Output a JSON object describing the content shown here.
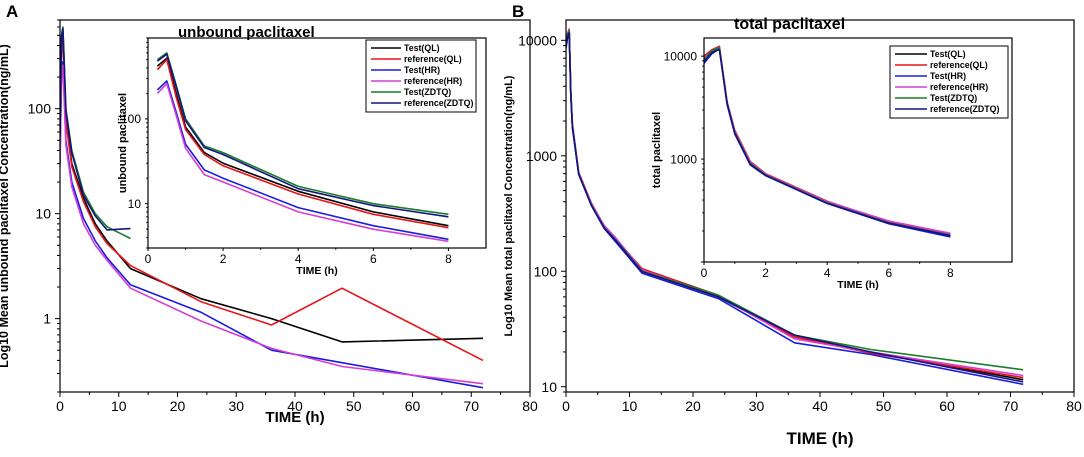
{
  "figure": {
    "panel_a_label": "A",
    "panel_b_label": "B"
  },
  "chart_data": [
    {
      "id": "A-main",
      "type": "line",
      "yscale": "log",
      "title": "",
      "xlabel": "TIME (h)",
      "ylabel": "Log10 Mean unbound paclitaxel Concentration(ng/mL)",
      "xlim": [
        0,
        80
      ],
      "ylim": [
        0.2,
        700
      ],
      "xticks": [
        0,
        10,
        20,
        30,
        40,
        50,
        60,
        70,
        80
      ],
      "yticks": [
        1,
        10,
        100
      ],
      "yticklabels": [
        "1",
        "10",
        "100"
      ],
      "series": [
        {
          "name": "Test(QL)",
          "color": "#000000",
          "x": [
            0,
            0.25,
            0.5,
            0.75,
            1,
            2,
            4,
            6,
            8,
            12,
            24,
            36,
            48,
            72
          ],
          "y": [
            50,
            420,
            520,
            200,
            80,
            30,
            14,
            8,
            5.5,
            3.0,
            1.55,
            1.0,
            0.6,
            0.65
          ]
        },
        {
          "name": "reference(QL)",
          "color": "#e8141a",
          "x": [
            0,
            0.25,
            0.5,
            0.75,
            1,
            2,
            4,
            6,
            8,
            12,
            24,
            36,
            48,
            72
          ],
          "y": [
            40,
            380,
            500,
            180,
            75,
            28,
            13,
            7.5,
            5.2,
            3.2,
            1.45,
            0.87,
            1.95,
            0.4
          ]
        },
        {
          "name": "Test(HR)",
          "color": "#1c1ce0",
          "x": [
            0,
            0.25,
            0.5,
            0.75,
            1,
            2,
            4,
            6,
            8,
            12,
            24,
            36,
            48,
            72
          ],
          "y": [
            30,
            220,
            280,
            120,
            50,
            20,
            9,
            5.5,
            3.8,
            2.1,
            1.15,
            0.5,
            0.38,
            0.22
          ]
        },
        {
          "name": "reference(HR)",
          "color": "#d23ed6",
          "x": [
            0,
            0.25,
            0.5,
            0.75,
            1,
            2,
            4,
            6,
            8,
            12,
            24,
            36,
            48,
            72
          ],
          "y": [
            28,
            200,
            260,
            110,
            45,
            18,
            8,
            5,
            3.6,
            1.95,
            0.95,
            0.52,
            0.35,
            0.24
          ]
        },
        {
          "name": "Test(ZDTQ)",
          "color": "#1a7d2a",
          "x": [
            0,
            0.25,
            0.5,
            0.75,
            1,
            2,
            4,
            6,
            8,
            12
          ],
          "y": [
            60,
            500,
            600,
            250,
            100,
            40,
            16,
            10,
            7.5,
            5.8
          ]
        },
        {
          "name": "reference(ZDTQ)",
          "color": "#141480",
          "x": [
            0,
            0.25,
            0.5,
            0.75,
            1,
            2,
            4,
            6,
            8,
            12
          ],
          "y": [
            55,
            480,
            580,
            240,
            95,
            38,
            15,
            9.5,
            7,
            7.2
          ]
        }
      ]
    },
    {
      "id": "A-inset",
      "type": "line",
      "yscale": "log",
      "title": "unbound paclitaxel",
      "xlabel": "TIME (h)",
      "ylabel": "unbound paclitaxel",
      "xlim": [
        0,
        9
      ],
      "ylim": [
        3,
        900
      ],
      "xticks": [
        0,
        2,
        4,
        6,
        8
      ],
      "yticks": [
        10,
        100
      ],
      "yticklabels": [
        "10",
        "100"
      ],
      "legend": "top-right",
      "series": [
        {
          "name": "Test(QL)",
          "color": "#000000",
          "x": [
            0.25,
            0.5,
            0.75,
            1,
            1.5,
            2,
            4,
            6,
            8
          ],
          "y": [
            420,
            520,
            200,
            80,
            40,
            30,
            14,
            8,
            5.5
          ]
        },
        {
          "name": "reference(QL)",
          "color": "#e8141a",
          "x": [
            0.25,
            0.5,
            0.75,
            1,
            1.5,
            2,
            4,
            6,
            8
          ],
          "y": [
            380,
            500,
            180,
            75,
            38,
            28,
            13,
            7.5,
            5.2
          ]
        },
        {
          "name": "Test(HR)",
          "color": "#1c1ce0",
          "x": [
            0.25,
            0.5,
            0.75,
            1,
            1.5,
            2,
            4,
            6,
            8
          ],
          "y": [
            220,
            280,
            120,
            50,
            25,
            20,
            9,
            5.5,
            3.8
          ]
        },
        {
          "name": "reference(HR)",
          "color": "#d23ed6",
          "x": [
            0.25,
            0.5,
            0.75,
            1,
            1.5,
            2,
            4,
            6,
            8
          ],
          "y": [
            200,
            260,
            110,
            45,
            22,
            18,
            8,
            5,
            3.6
          ]
        },
        {
          "name": "Test(ZDTQ)",
          "color": "#1a7d2a",
          "x": [
            0.25,
            0.5,
            0.75,
            1,
            1.5,
            2,
            4,
            6,
            8
          ],
          "y": [
            500,
            600,
            250,
            100,
            48,
            40,
            16,
            10,
            7.5
          ]
        },
        {
          "name": "reference(ZDTQ)",
          "color": "#141480",
          "x": [
            0.25,
            0.5,
            0.75,
            1,
            1.5,
            2,
            4,
            6,
            8
          ],
          "y": [
            480,
            580,
            240,
            95,
            46,
            38,
            15,
            9.5,
            7
          ]
        }
      ]
    },
    {
      "id": "B-main",
      "type": "line",
      "yscale": "log",
      "title": "",
      "xlabel": "TIME (h)",
      "ylabel": "Log10 Mean total paclitaxel Concentration(ng/mL)",
      "xlim": [
        0,
        80
      ],
      "ylim": [
        9,
        15000
      ],
      "xticks": [
        0,
        10,
        20,
        30,
        40,
        50,
        60,
        70,
        80
      ],
      "yticks": [
        10,
        100,
        1000,
        10000
      ],
      "yticklabels": [
        "10",
        "100",
        "1000",
        "10000"
      ],
      "series": [
        {
          "name": "Test(QL)",
          "color": "#000000",
          "x": [
            0,
            0.25,
            0.5,
            0.75,
            1,
            2,
            4,
            6,
            8,
            12,
            24,
            36,
            48,
            72
          ],
          "y": [
            9000,
            11000,
            12000,
            3500,
            1800,
            700,
            380,
            240,
            180,
            100,
            60,
            27,
            20,
            11.5
          ]
        },
        {
          "name": "reference(QL)",
          "color": "#e8141a",
          "x": [
            0,
            0.25,
            0.5,
            0.75,
            1,
            2,
            4,
            6,
            8,
            12,
            24,
            36,
            48,
            72
          ],
          "y": [
            10000,
            11500,
            12500,
            3600,
            1900,
            720,
            390,
            245,
            185,
            105,
            62,
            27,
            19.5,
            12
          ]
        },
        {
          "name": "Test(HR)",
          "color": "#1c1ce0",
          "x": [
            0,
            0.25,
            0.5,
            0.75,
            1,
            2,
            4,
            6,
            8,
            12,
            24,
            36,
            48,
            72
          ],
          "y": [
            8500,
            10500,
            11800,
            3400,
            1750,
            690,
            370,
            235,
            175,
            96,
            58,
            24,
            19,
            10.5
          ]
        },
        {
          "name": "reference(HR)",
          "color": "#d23ed6",
          "x": [
            0,
            0.25,
            0.5,
            0.75,
            1,
            2,
            4,
            6,
            8,
            12,
            24,
            36,
            48,
            72
          ],
          "y": [
            9500,
            11200,
            12200,
            3550,
            1850,
            710,
            385,
            250,
            190,
            102,
            61,
            26,
            20,
            12.5
          ]
        },
        {
          "name": "Test(ZDTQ)",
          "color": "#1a7d2a",
          "x": [
            0,
            0.25,
            0.5,
            0.75,
            1,
            2,
            4,
            6,
            8,
            12,
            24,
            36,
            48,
            72
          ],
          "y": [
            9200,
            11300,
            12100,
            3500,
            1800,
            700,
            375,
            240,
            182,
            100,
            62,
            28,
            21,
            14
          ]
        },
        {
          "name": "reference(ZDTQ)",
          "color": "#141480",
          "x": [
            0,
            0.25,
            0.5,
            0.75,
            1,
            2,
            4,
            6,
            8,
            12,
            24,
            36,
            48,
            72
          ],
          "y": [
            8800,
            10800,
            11600,
            3450,
            1780,
            695,
            372,
            238,
            180,
            99,
            60,
            28,
            20,
            11
          ]
        }
      ]
    },
    {
      "id": "B-inset",
      "type": "line",
      "yscale": "log",
      "title": "total paclitaxel",
      "xlabel": "TIME (h)",
      "ylabel": "total paclitaxel",
      "xlim": [
        0,
        10
      ],
      "ylim": [
        100,
        15000
      ],
      "xticks": [
        0,
        2,
        4,
        6,
        8
      ],
      "yticks": [
        1000,
        10000
      ],
      "yticklabels": [
        "1000",
        "10000"
      ],
      "legend": "top-right",
      "series": [
        {
          "name": "Test(QL)",
          "color": "#000000",
          "x": [
            0,
            0.25,
            0.5,
            0.75,
            1,
            1.5,
            2,
            4,
            6,
            8
          ],
          "y": [
            9000,
            11000,
            12000,
            3500,
            1800,
            900,
            700,
            380,
            240,
            180
          ]
        },
        {
          "name": "reference(QL)",
          "color": "#e8141a",
          "x": [
            0,
            0.25,
            0.5,
            0.75,
            1,
            1.5,
            2,
            4,
            6,
            8
          ],
          "y": [
            10000,
            11500,
            12500,
            3600,
            1900,
            950,
            720,
            390,
            245,
            185
          ]
        },
        {
          "name": "Test(HR)",
          "color": "#1c1ce0",
          "x": [
            0,
            0.25,
            0.5,
            0.75,
            1,
            1.5,
            2,
            4,
            6,
            8
          ],
          "y": [
            8500,
            10500,
            11800,
            3400,
            1750,
            880,
            690,
            370,
            235,
            175
          ]
        },
        {
          "name": "reference(HR)",
          "color": "#d23ed6",
          "x": [
            0,
            0.25,
            0.5,
            0.75,
            1,
            1.5,
            2,
            4,
            6,
            8
          ],
          "y": [
            9500,
            11200,
            12200,
            3550,
            1850,
            930,
            710,
            385,
            250,
            190
          ]
        },
        {
          "name": "Test(ZDTQ)",
          "color": "#1a7d2a",
          "x": [
            0,
            0.25,
            0.5,
            0.75,
            1,
            1.5,
            2,
            4,
            6,
            8
          ],
          "y": [
            9200,
            11300,
            12100,
            3500,
            1800,
            910,
            700,
            375,
            240,
            182
          ]
        },
        {
          "name": "reference(ZDTQ)",
          "color": "#141480",
          "x": [
            0,
            0.25,
            0.5,
            0.75,
            1,
            1.5,
            2,
            4,
            6,
            8
          ],
          "y": [
            8800,
            10800,
            11600,
            3450,
            1780,
            890,
            695,
            372,
            238,
            180
          ]
        }
      ]
    }
  ]
}
